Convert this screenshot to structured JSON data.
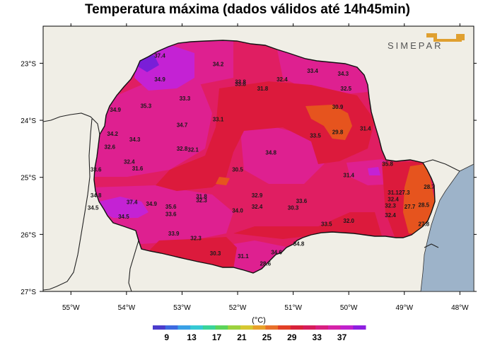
{
  "title": "Temperatura máxima (dados válidos até 14h45min)",
  "logo_text": "SIMEPAR",
  "lon_ticks": [
    "55°W",
    "54°W",
    "53°W",
    "52°W",
    "51°W",
    "50°W",
    "49°W",
    "48°W"
  ],
  "lat_ticks": [
    "23°S",
    "24°S",
    "25°S",
    "26°S",
    "27°S"
  ],
  "colorbar": {
    "unit": "(°C)",
    "ticks": [
      "9",
      "13",
      "17",
      "21",
      "25",
      "29",
      "33",
      "37"
    ],
    "colors": [
      "#4b3ccc",
      "#3d6ae0",
      "#39a0e6",
      "#36c9d4",
      "#3ad49a",
      "#5cd45a",
      "#9cd23e",
      "#d6c832",
      "#e8a12a",
      "#e8702a",
      "#e24026",
      "#d8223a",
      "#d61c5a",
      "#d81f80",
      "#d522a8",
      "#c021cc",
      "#8e1fe0"
    ]
  },
  "colors": {
    "background": "#f0eee6",
    "ocean": "#9db3c9",
    "temp_30_32": "#dc1a3c",
    "temp_32_34": "#e01e62",
    "temp_34_36": "#de2090",
    "temp_36_38": "#c422d4",
    "temp_38_plus": "#7a1ed8",
    "temp_28_30": "#e6541e"
  },
  "chart_data": {
    "type": "map",
    "title": "Temperatura máxima (dados válidos até 14h45min)",
    "xlabel": "",
    "ylabel": "",
    "xlim": [
      -55.5,
      -47.75
    ],
    "ylim": [
      -27.0,
      -22.35
    ],
    "stations": [
      {
        "lon": -53.4,
        "lat": -22.9,
        "value": "37.4"
      },
      {
        "lon": -52.35,
        "lat": -23.05,
        "value": "34.2"
      },
      {
        "lon": -53.4,
        "lat": -23.32,
        "value": "34.9"
      },
      {
        "lon": -51.95,
        "lat": -23.4,
        "value": "33.8"
      },
      {
        "lon": -51.95,
        "lat": -23.36,
        "value": "33.8"
      },
      {
        "lon": -51.2,
        "lat": -23.32,
        "value": "32.4"
      },
      {
        "lon": -50.65,
        "lat": -23.17,
        "value": "33.4"
      },
      {
        "lon": -50.1,
        "lat": -23.22,
        "value": "34.3"
      },
      {
        "lon": -50.05,
        "lat": -23.48,
        "value": "32.5"
      },
      {
        "lon": -51.55,
        "lat": -23.48,
        "value": "31.8"
      },
      {
        "lon": -52.95,
        "lat": -23.65,
        "value": "33.3"
      },
      {
        "lon": -53.65,
        "lat": -23.78,
        "value": "35.3"
      },
      {
        "lon": -54.2,
        "lat": -23.85,
        "value": "34.9"
      },
      {
        "lon": -50.2,
        "lat": -23.8,
        "value": "30.9"
      },
      {
        "lon": -52.35,
        "lat": -24.02,
        "value": "33.1"
      },
      {
        "lon": -53.0,
        "lat": -24.12,
        "value": "34.7"
      },
      {
        "lon": -50.2,
        "lat": -24.24,
        "value": "29.8"
      },
      {
        "lon": -49.7,
        "lat": -24.18,
        "value": "31.4"
      },
      {
        "lon": -50.6,
        "lat": -24.3,
        "value": "33.5"
      },
      {
        "lon": -54.25,
        "lat": -24.27,
        "value": "34.2"
      },
      {
        "lon": -53.85,
        "lat": -24.37,
        "value": "34.3"
      },
      {
        "lon": -54.3,
        "lat": -24.5,
        "value": "32.6"
      },
      {
        "lon": -53.0,
        "lat": -24.53,
        "value": "32.8"
      },
      {
        "lon": -52.8,
        "lat": -24.55,
        "value": "32.1"
      },
      {
        "lon": -51.4,
        "lat": -24.6,
        "value": "34.8"
      },
      {
        "lon": -53.95,
        "lat": -24.76,
        "value": "32.4"
      },
      {
        "lon": -53.8,
        "lat": -24.88,
        "value": "31.6"
      },
      {
        "lon": -54.55,
        "lat": -24.9,
        "value": "33.6"
      },
      {
        "lon": -52.0,
        "lat": -24.9,
        "value": "30.5"
      },
      {
        "lon": -49.3,
        "lat": -24.8,
        "value": "35.8"
      },
      {
        "lon": -50.0,
        "lat": -25.0,
        "value": "31.4"
      },
      {
        "lon": -49.0,
        "lat": -25.3,
        "value": "27.3"
      },
      {
        "lon": -48.55,
        "lat": -25.2,
        "value": "28.7"
      },
      {
        "lon": -49.2,
        "lat": -25.3,
        "value": "31.1"
      },
      {
        "lon": -49.2,
        "lat": -25.42,
        "value": "32.4"
      },
      {
        "lon": -49.25,
        "lat": -25.53,
        "value": "32.3"
      },
      {
        "lon": -48.9,
        "lat": -25.55,
        "value": "27.7"
      },
      {
        "lon": -48.65,
        "lat": -25.52,
        "value": "28.5"
      },
      {
        "lon": -54.55,
        "lat": -25.35,
        "value": "34.8"
      },
      {
        "lon": -54.6,
        "lat": -25.57,
        "value": "34.5"
      },
      {
        "lon": -53.9,
        "lat": -25.47,
        "value": "37.4"
      },
      {
        "lon": -53.55,
        "lat": -25.5,
        "value": "34.9"
      },
      {
        "lon": -54.05,
        "lat": -25.72,
        "value": "34.5"
      },
      {
        "lon": -52.65,
        "lat": -25.37,
        "value": "31.8"
      },
      {
        "lon": -52.65,
        "lat": -25.44,
        "value": "32.3"
      },
      {
        "lon": -51.65,
        "lat": -25.35,
        "value": "32.9"
      },
      {
        "lon": -50.85,
        "lat": -25.45,
        "value": "33.6"
      },
      {
        "lon": -53.2,
        "lat": -25.55,
        "value": "35.6"
      },
      {
        "lon": -53.2,
        "lat": -25.68,
        "value": "33.6"
      },
      {
        "lon": -52.0,
        "lat": -25.62,
        "value": "34.0"
      },
      {
        "lon": -51.65,
        "lat": -25.55,
        "value": "32.4"
      },
      {
        "lon": -51.0,
        "lat": -25.57,
        "value": "30.3"
      },
      {
        "lon": -49.25,
        "lat": -25.7,
        "value": "32.4"
      },
      {
        "lon": -50.0,
        "lat": -25.8,
        "value": "32.0"
      },
      {
        "lon": -50.4,
        "lat": -25.85,
        "value": "33.5"
      },
      {
        "lon": -48.65,
        "lat": -25.85,
        "value": "27.8"
      },
      {
        "lon": -53.15,
        "lat": -26.02,
        "value": "33.9"
      },
      {
        "lon": -52.75,
        "lat": -26.1,
        "value": "32.3"
      },
      {
        "lon": -50.9,
        "lat": -26.2,
        "value": "34.8"
      },
      {
        "lon": -51.3,
        "lat": -26.35,
        "value": "34.6"
      },
      {
        "lon": -52.4,
        "lat": -26.37,
        "value": "30.3"
      },
      {
        "lon": -51.9,
        "lat": -26.42,
        "value": "31.1"
      },
      {
        "lon": -51.5,
        "lat": -26.55,
        "value": "28.6"
      }
    ]
  }
}
